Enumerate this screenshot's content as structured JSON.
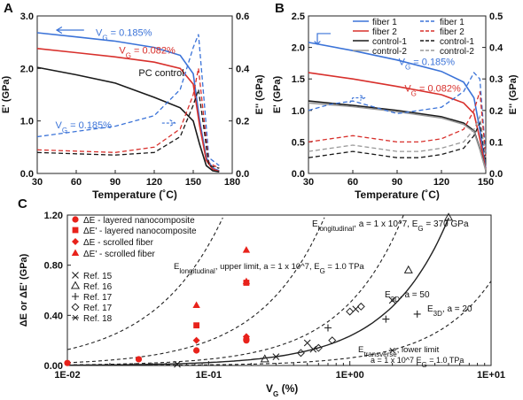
{
  "chart_data": [
    {
      "panel": "A",
      "type": "line",
      "xlabel": "Temperature (˚C)",
      "ylabel_left": "E' (GPa)",
      "ylabel_right": "E'' (GPa)",
      "xlim": [
        30,
        180
      ],
      "ylim_left": [
        0,
        3.0
      ],
      "ylim_right": [
        0,
        0.6
      ],
      "x_ticks": [
        "30",
        "60",
        "90",
        "120",
        "150",
        "180"
      ],
      "y_ticks_left": [
        "0.0",
        "1.0",
        "2.0",
        "3.0"
      ],
      "y_ticks_right": [
        "0.0",
        "0.2",
        "0.4",
        "0.6"
      ],
      "annotations": [
        "V_G = 0.185%",
        "V_G = 0.082%",
        "PC control",
        "V_G = 0.185%"
      ],
      "series": [
        {
          "axis": "left",
          "style": "solid",
          "color": "#3b73d8",
          "x": [
            30,
            60,
            90,
            120,
            140,
            150,
            155,
            160,
            165,
            170
          ],
          "values": [
            2.68,
            2.6,
            2.52,
            2.4,
            2.25,
            1.9,
            1.0,
            0.3,
            0.1,
            0.05
          ]
        },
        {
          "axis": "left",
          "style": "solid",
          "color": "#d8302c",
          "x": [
            30,
            60,
            90,
            120,
            140,
            150,
            155,
            160,
            165,
            170
          ],
          "values": [
            2.38,
            2.3,
            2.22,
            2.12,
            2.0,
            1.7,
            0.9,
            0.25,
            0.08,
            0.04
          ]
        },
        {
          "axis": "left",
          "style": "solid",
          "color": "#1a1a1a",
          "x": [
            30,
            60,
            90,
            120,
            140,
            150,
            155,
            160,
            165,
            170
          ],
          "values": [
            2.02,
            1.88,
            1.72,
            1.45,
            1.25,
            1.0,
            0.55,
            0.15,
            0.05,
            0.03
          ]
        },
        {
          "axis": "right",
          "style": "dashed",
          "color": "#3b73d8",
          "x": [
            30,
            60,
            90,
            120,
            140,
            150,
            154,
            158,
            162,
            170
          ],
          "values": [
            0.14,
            0.16,
            0.18,
            0.22,
            0.32,
            0.48,
            0.53,
            0.3,
            0.06,
            0.03
          ]
        },
        {
          "axis": "right",
          "style": "dashed",
          "color": "#d8302c",
          "x": [
            30,
            60,
            90,
            120,
            140,
            150,
            154,
            158,
            162,
            170
          ],
          "values": [
            0.09,
            0.085,
            0.08,
            0.1,
            0.17,
            0.3,
            0.4,
            0.22,
            0.04,
            0.02
          ]
        },
        {
          "axis": "right",
          "style": "dashed",
          "color": "#1a1a1a",
          "x": [
            30,
            60,
            90,
            120,
            140,
            150,
            154,
            158,
            162,
            170
          ],
          "values": [
            0.08,
            0.075,
            0.07,
            0.08,
            0.14,
            0.26,
            0.32,
            0.18,
            0.03,
            0.02
          ]
        }
      ]
    },
    {
      "panel": "B",
      "type": "line",
      "xlabel": "Temperature (˚C)",
      "ylabel_left": "E' (GPa)",
      "ylabel_right": "E'' (GPa)",
      "xlim": [
        30,
        150
      ],
      "ylim_left": [
        0,
        2.5
      ],
      "ylim_right": [
        0,
        0.5
      ],
      "x_ticks": [
        "30",
        "60",
        "90",
        "120",
        "150"
      ],
      "y_ticks_left": [
        "0.0",
        "0.5",
        "1.0",
        "1.5",
        "2.0",
        "2.5"
      ],
      "y_ticks_right": [
        "0.0",
        "0.1",
        "0.2",
        "0.3",
        "0.4",
        "0.5"
      ],
      "legend": [
        {
          "label": "fiber 1",
          "color": "#3b73d8",
          "style": "solid"
        },
        {
          "label": "fiber 2",
          "color": "#d8302c",
          "style": "solid"
        },
        {
          "label": "control-1",
          "color": "#1a1a1a",
          "style": "solid"
        },
        {
          "label": "control-2",
          "color": "#999999",
          "style": "solid"
        },
        {
          "label": "fiber 1",
          "color": "#3b73d8",
          "style": "dashed"
        },
        {
          "label": "fiber 2",
          "color": "#d8302c",
          "style": "dashed"
        },
        {
          "label": "control-1",
          "color": "#1a1a1a",
          "style": "dashed"
        },
        {
          "label": "control-2",
          "color": "#999999",
          "style": "dashed"
        }
      ],
      "annotations": [
        "V_G = 0.185%",
        "V_G = 0.082%"
      ],
      "series": [
        {
          "axis": "left",
          "style": "solid",
          "color": "#3b73d8",
          "x": [
            30,
            60,
            90,
            120,
            135,
            142,
            146,
            150
          ],
          "values": [
            2.08,
            1.95,
            1.8,
            1.62,
            1.45,
            1.2,
            0.7,
            0.08
          ]
        },
        {
          "axis": "left",
          "style": "solid",
          "color": "#d8302c",
          "x": [
            30,
            60,
            90,
            120,
            135,
            142,
            146,
            150
          ],
          "values": [
            1.6,
            1.5,
            1.38,
            1.25,
            1.12,
            0.95,
            0.55,
            0.06
          ]
        },
        {
          "axis": "left",
          "style": "solid",
          "color": "#1a1a1a",
          "x": [
            30,
            60,
            90,
            120,
            135,
            142,
            146,
            150
          ],
          "values": [
            1.15,
            1.08,
            1.0,
            0.9,
            0.8,
            0.68,
            0.4,
            0.05
          ]
        },
        {
          "axis": "left",
          "style": "solid",
          "color": "#999999",
          "x": [
            30,
            60,
            90,
            120,
            135,
            142,
            146,
            150
          ],
          "values": [
            1.12,
            1.06,
            0.98,
            0.88,
            0.78,
            0.66,
            0.38,
            0.05
          ]
        },
        {
          "axis": "right",
          "style": "dashed",
          "color": "#3b73d8",
          "x": [
            30,
            45,
            60,
            75,
            90,
            105,
            120,
            135,
            142,
            146,
            150
          ],
          "values": [
            0.2,
            0.22,
            0.23,
            0.21,
            0.19,
            0.2,
            0.21,
            0.26,
            0.32,
            0.3,
            0.06
          ]
        },
        {
          "axis": "right",
          "style": "dashed",
          "color": "#d8302c",
          "x": [
            30,
            45,
            60,
            75,
            90,
            105,
            120,
            135,
            142,
            146,
            150
          ],
          "values": [
            0.1,
            0.11,
            0.12,
            0.11,
            0.1,
            0.1,
            0.11,
            0.14,
            0.2,
            0.26,
            0.05
          ]
        },
        {
          "axis": "right",
          "style": "dashed",
          "color": "#1a1a1a",
          "x": [
            30,
            45,
            60,
            75,
            90,
            105,
            120,
            135,
            142,
            146,
            150
          ],
          "values": [
            0.05,
            0.06,
            0.07,
            0.06,
            0.05,
            0.05,
            0.06,
            0.08,
            0.12,
            0.16,
            0.04
          ]
        },
        {
          "axis": "right",
          "style": "dashed",
          "color": "#999999",
          "x": [
            30,
            45,
            60,
            75,
            90,
            105,
            120,
            135,
            142,
            146,
            150
          ],
          "values": [
            0.07,
            0.08,
            0.09,
            0.08,
            0.07,
            0.07,
            0.08,
            0.1,
            0.14,
            0.18,
            0.05
          ]
        }
      ]
    },
    {
      "panel": "C",
      "type": "scatter",
      "xlabel": "V_G (%)",
      "ylabel": "ΔE or ΔE' (GPa)",
      "xscale": "log",
      "xlim": [
        0.01,
        10
      ],
      "ylim": [
        0,
        1.2
      ],
      "x_ticks": [
        "1E-02",
        "1E-01",
        "1E+00",
        "1E+01"
      ],
      "y_ticks": [
        "0.00",
        "0.40",
        "0.80",
        "1.20"
      ],
      "legend": [
        {
          "label": "ΔE - layered nanocomposite",
          "marker": "circle",
          "color": "#e8221b"
        },
        {
          "label": "ΔE' - layered nanocomposite",
          "marker": "square",
          "color": "#e8221b"
        },
        {
          "label": "ΔE - scrolled fiber",
          "marker": "diamond",
          "color": "#e8221b"
        },
        {
          "label": "ΔE' - scrolled fiber",
          "marker": "triangle",
          "color": "#e8221b"
        },
        {
          "label": "Ref. 15",
          "marker": "x",
          "color": "#222222"
        },
        {
          "label": "Ref. 16",
          "marker": "open-triangle",
          "color": "#222222"
        },
        {
          "label": "Ref. 17",
          "marker": "plus",
          "color": "#222222"
        },
        {
          "label": "Ref. 17",
          "marker": "open-diamond",
          "color": "#222222"
        },
        {
          "label": "Ref. 18",
          "marker": "asterisk",
          "color": "#222222"
        }
      ],
      "annotations": [
        "E_longitudinal, a = 1 x 10^7, E_G = 370 GPa",
        "E_longitudinal, upper limit, a = 1 x 10^7, E_G = 1.0 TPa",
        "E_3D, a = 50",
        "E_3D, a = 20",
        "E_transverse, lower limit",
        "a = 1 x 10^7  E_G = 1.0 TPa"
      ],
      "points": [
        {
          "series": "circle",
          "x": 0.01,
          "y": 0.02
        },
        {
          "series": "circle",
          "x": 0.032,
          "y": 0.05
        },
        {
          "series": "circle",
          "x": 0.082,
          "y": 0.12
        },
        {
          "series": "circle",
          "x": 0.185,
          "y": 0.21
        },
        {
          "series": "circle",
          "x": 0.185,
          "y": 0.2
        },
        {
          "series": "square",
          "x": 0.082,
          "y": 0.32
        },
        {
          "series": "square",
          "x": 0.185,
          "y": 0.66
        },
        {
          "series": "diamond",
          "x": 0.082,
          "y": 0.2
        },
        {
          "series": "diamond",
          "x": 0.185,
          "y": 0.23
        },
        {
          "series": "triangle",
          "x": 0.082,
          "y": 0.48
        },
        {
          "series": "triangle",
          "x": 0.185,
          "y": 0.92
        },
        {
          "series": "triangle",
          "x": 0.185,
          "y": 0.67
        },
        {
          "series": "x",
          "x": 0.06,
          "y": 0.01
        },
        {
          "series": "x",
          "x": 0.3,
          "y": 0.07
        },
        {
          "series": "x",
          "x": 0.5,
          "y": 0.18
        },
        {
          "series": "x",
          "x": 0.55,
          "y": 0.13
        },
        {
          "series": "x",
          "x": 1.1,
          "y": 0.45
        },
        {
          "series": "x",
          "x": 2.0,
          "y": 0.52
        },
        {
          "series": "open-triangle",
          "x": 0.25,
          "y": 0.05
        },
        {
          "series": "open-triangle",
          "x": 2.6,
          "y": 0.76
        },
        {
          "series": "open-triangle",
          "x": 5.0,
          "y": 1.18
        },
        {
          "series": "plus",
          "x": 0.7,
          "y": 0.3
        },
        {
          "series": "plus",
          "x": 1.8,
          "y": 0.37
        },
        {
          "series": "plus",
          "x": 3.0,
          "y": 0.41
        },
        {
          "series": "open-diamond",
          "x": 0.45,
          "y": 0.1
        },
        {
          "series": "open-diamond",
          "x": 0.6,
          "y": 0.14
        },
        {
          "series": "open-diamond",
          "x": 0.75,
          "y": 0.2
        },
        {
          "series": "open-diamond",
          "x": 1.0,
          "y": 0.43
        },
        {
          "series": "open-diamond",
          "x": 1.2,
          "y": 0.47
        },
        {
          "series": "asterisk",
          "x": 2.0,
          "y": 0.12
        }
      ]
    }
  ],
  "labels": {
    "panel_a": "A",
    "panel_b": "B",
    "panel_c": "C"
  }
}
